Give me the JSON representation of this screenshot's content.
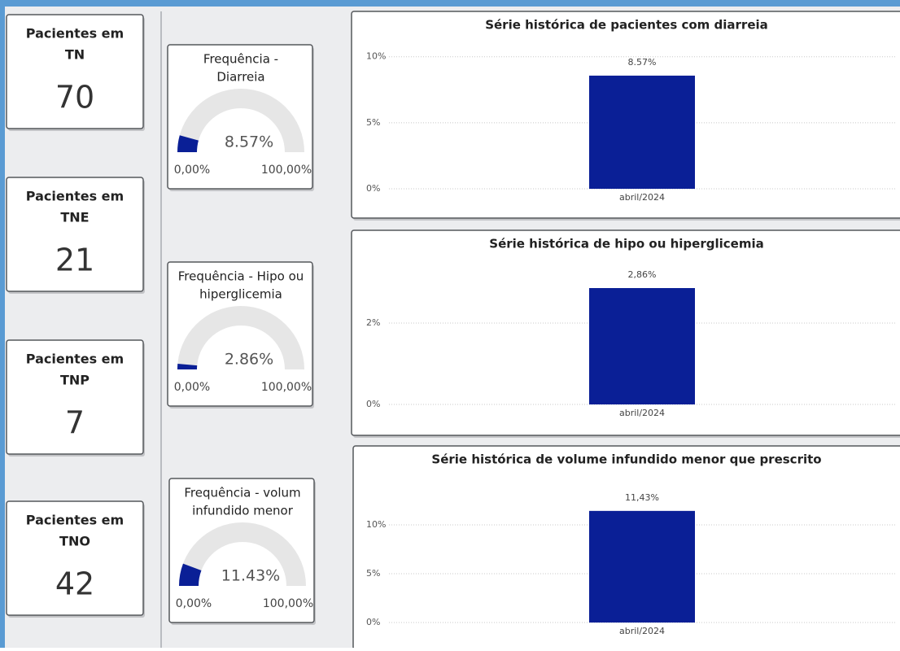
{
  "cards": [
    {
      "title": "Pacientes em",
      "code": "TN",
      "value": 70
    },
    {
      "title": "Pacientes em",
      "code": "TNE",
      "value": 21
    },
    {
      "title": "Pacientes em",
      "code": "TNP",
      "value": 7
    },
    {
      "title": "Pacientes em",
      "code": "TNO",
      "value": 42
    }
  ],
  "gauges": [
    {
      "title_lines": [
        "Frequência -",
        "Diarreia"
      ],
      "value": 8.57,
      "value_label": "8.57%",
      "min": {
        "value": 0,
        "label": "0,00%"
      },
      "max": {
        "value": 100,
        "label": "100,00%"
      },
      "color": "#0a1f96"
    },
    {
      "title_lines": [
        "Frequência - Hipo ou",
        "hiperglicemia"
      ],
      "value": 2.86,
      "value_label": "2.86%",
      "min": {
        "value": 0,
        "label": "0,00%"
      },
      "max": {
        "value": 100,
        "label": "100,00%"
      },
      "color": "#0a1f96"
    },
    {
      "title_lines": [
        "Frequência - volum",
        "infundido menor"
      ],
      "value": 11.43,
      "value_label": "11.43%",
      "min": {
        "value": 0,
        "label": "0,00%"
      },
      "max": {
        "value": 100,
        "label": "100,00%"
      },
      "color": "#0a1f96"
    }
  ],
  "chart_data": [
    {
      "type": "bar",
      "title": "Série histórica de pacientes com diarreia",
      "categories": [
        "abril/2024"
      ],
      "values": [
        8.57
      ],
      "value_labels": [
        "8.57%"
      ],
      "color": "#0a1f96",
      "ylim": [
        0,
        10.6
      ],
      "yticks": [
        {
          "value": 0,
          "label": "0%"
        },
        {
          "value": 5,
          "label": "5%"
        },
        {
          "value": 10,
          "label": "10%"
        }
      ],
      "grid": true
    },
    {
      "type": "bar",
      "title": "Série histórica de hipo ou hiperglicemia",
      "categories": [
        "abril/2024"
      ],
      "values": [
        2.86
      ],
      "value_labels": [
        "2,86%"
      ],
      "color": "#0a1f96",
      "ylim": [
        0,
        3.2
      ],
      "yticks": [
        {
          "value": 0,
          "label": "0%"
        },
        {
          "value": 2,
          "label": "2%"
        }
      ],
      "grid": true
    },
    {
      "type": "bar",
      "title": "Série histórica de volume infundido menor que prescrito",
      "categories": [
        "abril/2024"
      ],
      "values": [
        11.43
      ],
      "value_labels": [
        "11,43%"
      ],
      "color": "#0a1f96",
      "ylim": [
        0,
        12.5
      ],
      "yticks": [
        {
          "value": 0,
          "label": "0%"
        },
        {
          "value": 5,
          "label": "5%"
        },
        {
          "value": 10,
          "label": "10%"
        }
      ],
      "grid": true
    }
  ]
}
